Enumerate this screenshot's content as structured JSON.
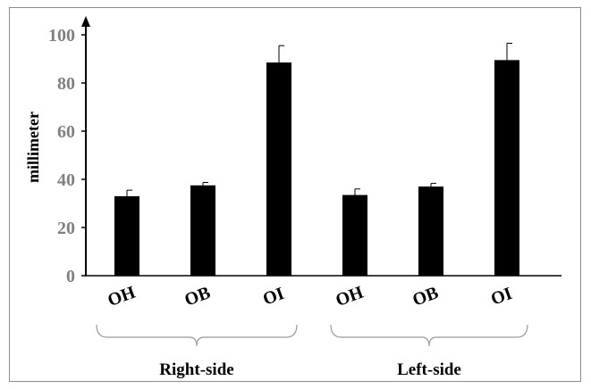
{
  "chart_data": {
    "type": "bar",
    "title": "",
    "xlabel": "",
    "ylabel": "millimeter",
    "ylim": [
      0,
      100
    ],
    "yticks": [
      0,
      20,
      40,
      60,
      80,
      100
    ],
    "grid": false,
    "legend": "none",
    "bar_color": "#000000",
    "categories": [
      "OH",
      "OB",
      "OI",
      "OH",
      "OB",
      "OI"
    ],
    "groups": [
      {
        "label": "Right-side",
        "categories": [
          "OH",
          "OB",
          "OI"
        ]
      },
      {
        "label": "Left-side",
        "categories": [
          "OH",
          "OB",
          "OI"
        ]
      }
    ],
    "series": [
      {
        "values": [
          33,
          37.5,
          88.5,
          33.5,
          37,
          89.5
        ],
        "error": [
          2.5,
          1.2,
          7,
          2.5,
          1.3,
          7
        ]
      }
    ]
  }
}
